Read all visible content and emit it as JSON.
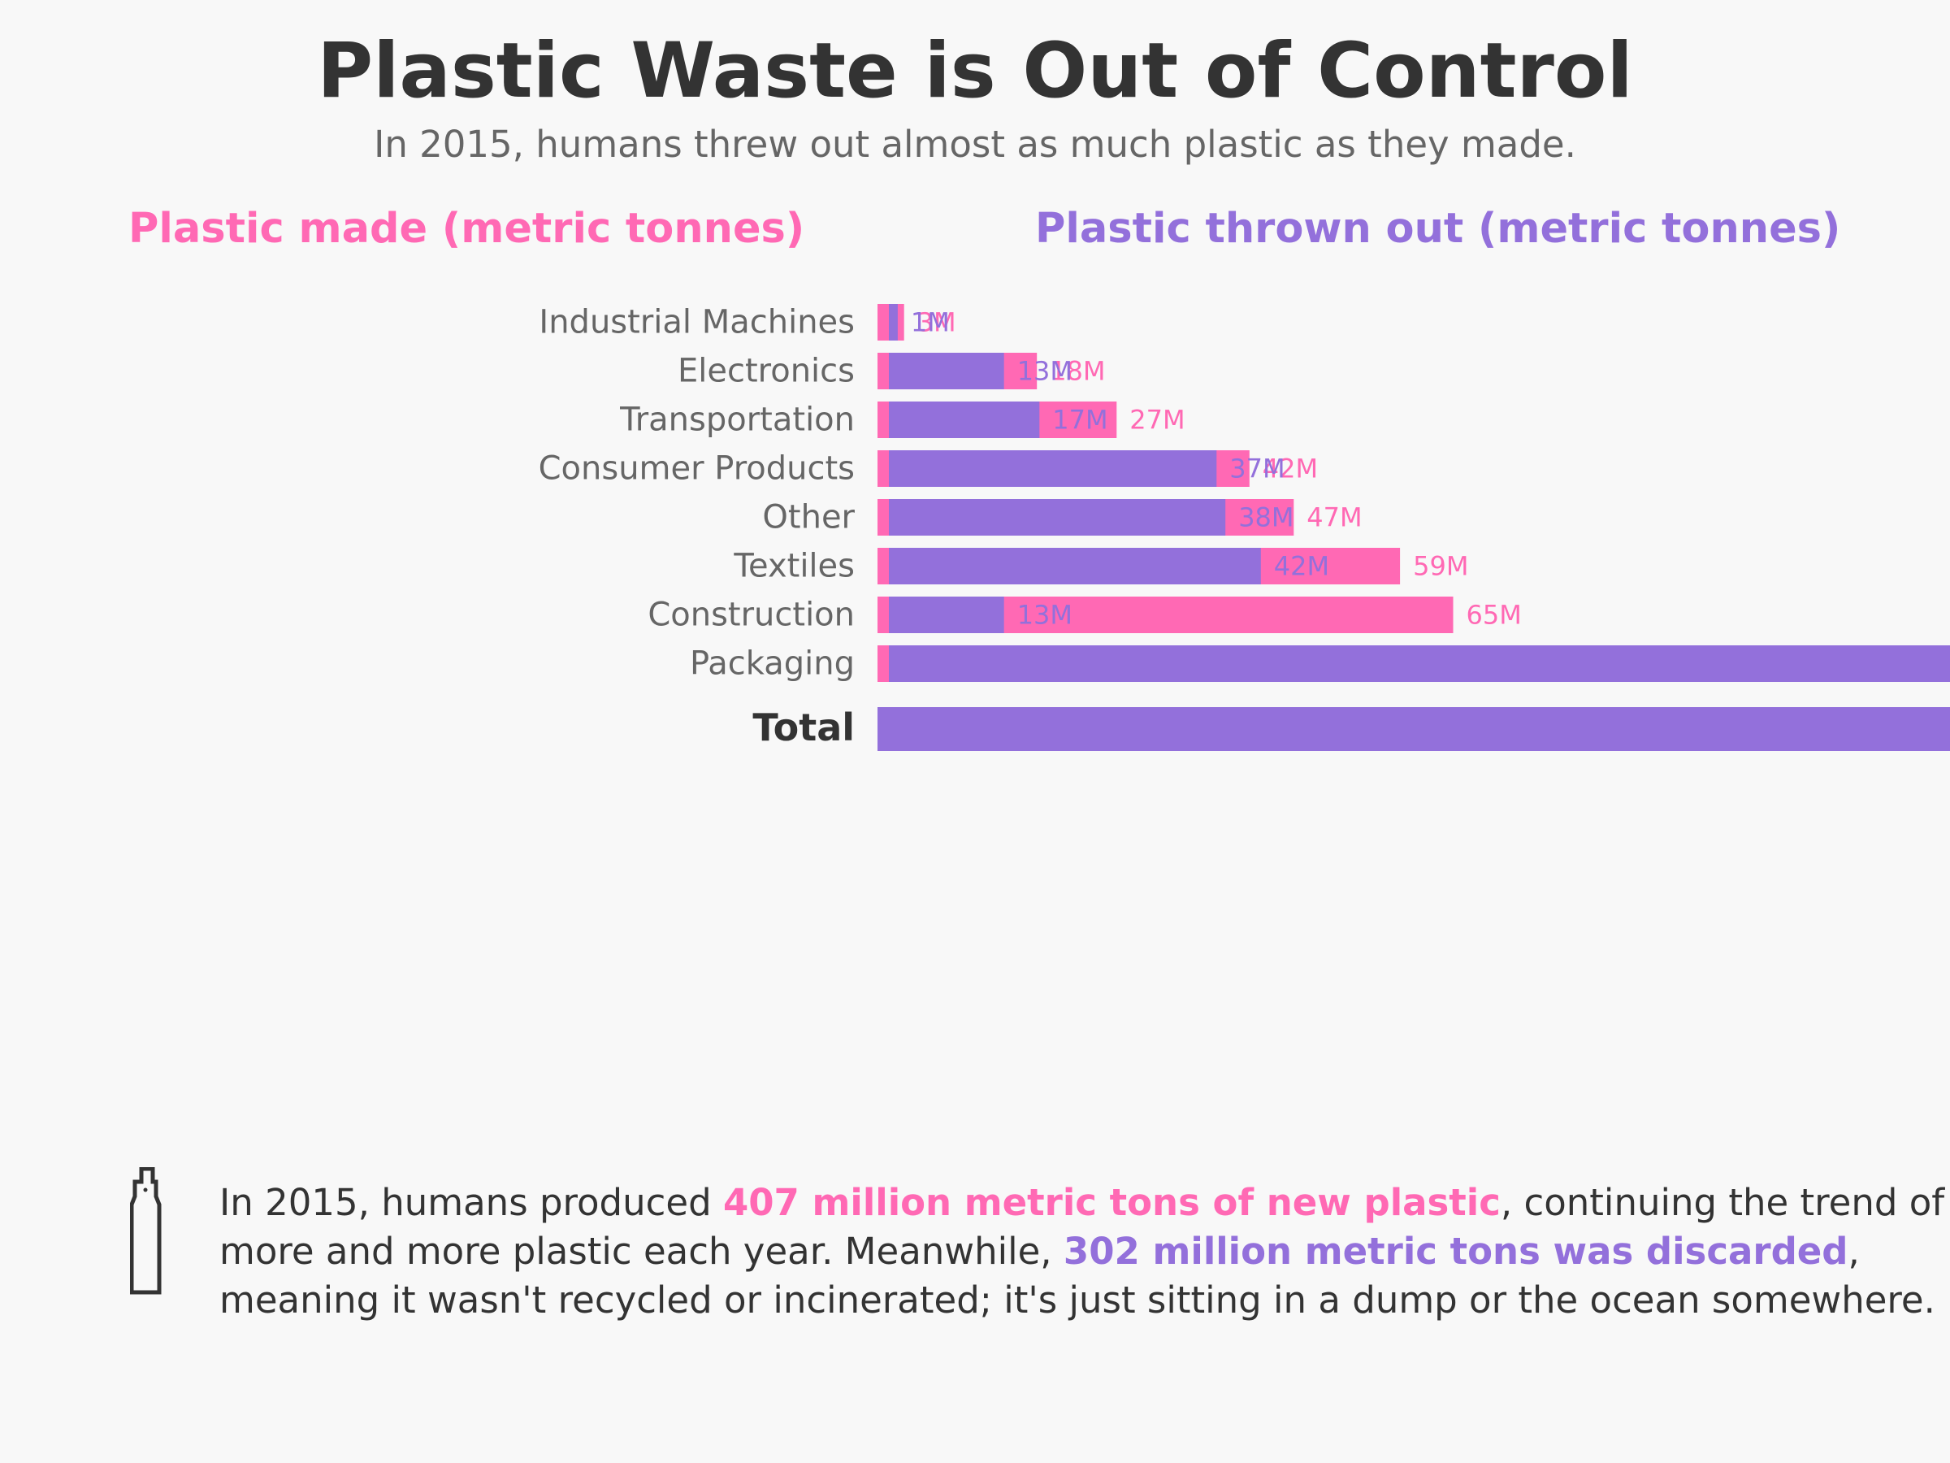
{
  "title": "Plastic Waste is Out of Control",
  "subtitle": "In 2015, humans threw out almost as much plastic as they made.",
  "headers": {
    "made": "Plastic made (metric tonnes)",
    "thrown": "Plastic thrown out (metric tonnes)"
  },
  "colors": {
    "made": "#ff69b4",
    "thrown": "#9370db",
    "text_dark": "#333333",
    "text_gray": "#666666",
    "background": "#f8f8f8"
  },
  "chart_data": {
    "type": "bar",
    "title": "Plastic Waste is Out of Control",
    "categories": [
      "Industrial Machines",
      "Electronics",
      "Transportation",
      "Consumer Products",
      "Other",
      "Textiles",
      "Construction",
      "Packaging",
      "Total"
    ],
    "series": [
      {
        "name": "Plastic made (metric tonnes)",
        "values": [
          3,
          18,
          27,
          42,
          47,
          59,
          65,
          146,
          407
        ],
        "labels": [
          "3M",
          "18M",
          "27M",
          "42M",
          "47M",
          "59M",
          "65M",
          "",
          ""
        ]
      },
      {
        "name": "Plastic thrown out (metric tonnes)",
        "values": [
          1,
          13,
          17,
          37,
          38,
          42,
          13,
          141,
          302
        ],
        "labels": [
          "1M",
          "13M",
          "17M",
          "37M",
          "38M",
          "42M",
          "13M",
          "",
          ""
        ]
      }
    ],
    "xlabel": "",
    "ylabel": ""
  },
  "icon": "bottle-icon",
  "note": {
    "line1_pre": "In 2015, humans produced ",
    "line1_hl": "407 million metric tons of new plastic",
    "line1_post": ", continuing the trend of",
    "line2_pre": "more and more plastic each year. Meanwhile, ",
    "line2_hl": "302 million metric tons was discarded",
    "line2_post": ",",
    "line3": "meaning it wasn't recycled or incinerated; it's just sitting in a dump or the ocean somewhere."
  }
}
